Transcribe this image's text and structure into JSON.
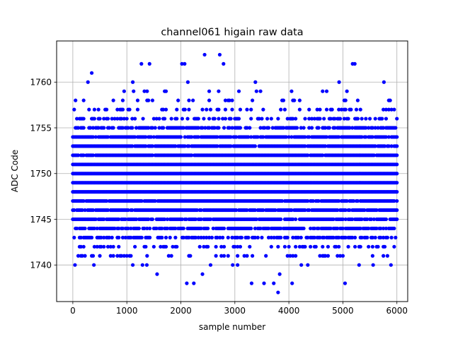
{
  "chart_data": {
    "type": "scatter",
    "title": "channel061 higain raw data",
    "xlabel": "sample number",
    "ylabel": "ADC Code",
    "xlim": [
      -300,
      6200
    ],
    "ylim": [
      1736,
      1764.5
    ],
    "xticks": [
      0,
      1000,
      2000,
      3000,
      4000,
      5000,
      6000
    ],
    "yticks": [
      1740,
      1745,
      1750,
      1755,
      1760
    ],
    "grid": true,
    "marker_color": "#0000ff",
    "n_samples": 6000,
    "sample_step": 25,
    "core_levels": [
      1742,
      1743,
      1744,
      1745,
      1746,
      1747,
      1748,
      1749,
      1750,
      1751,
      1752,
      1753,
      1754,
      1755,
      1756
    ],
    "core_level_fill": [
      0.28,
      0.55,
      0.75,
      0.85,
      0.9,
      0.95,
      1.0,
      1.0,
      1.0,
      1.0,
      0.95,
      0.92,
      0.88,
      0.72,
      0.4
    ],
    "edge_points": [
      {
        "x": 40,
        "y": 1740
      },
      {
        "x": 390,
        "y": 1740
      },
      {
        "x": 1110,
        "y": 1740
      },
      {
        "x": 1290,
        "y": 1740
      },
      {
        "x": 1370,
        "y": 1740
      },
      {
        "x": 1560,
        "y": 1739
      },
      {
        "x": 2110,
        "y": 1738
      },
      {
        "x": 2240,
        "y": 1738
      },
      {
        "x": 2400,
        "y": 1739
      },
      {
        "x": 2550,
        "y": 1740
      },
      {
        "x": 2960,
        "y": 1740
      },
      {
        "x": 3050,
        "y": 1740
      },
      {
        "x": 3310,
        "y": 1738
      },
      {
        "x": 3540,
        "y": 1738
      },
      {
        "x": 3720,
        "y": 1738
      },
      {
        "x": 3800,
        "y": 1737
      },
      {
        "x": 3830,
        "y": 1739
      },
      {
        "x": 4060,
        "y": 1738
      },
      {
        "x": 4230,
        "y": 1740
      },
      {
        "x": 4350,
        "y": 1740
      },
      {
        "x": 5040,
        "y": 1738
      },
      {
        "x": 5300,
        "y": 1740
      },
      {
        "x": 5560,
        "y": 1740
      },
      {
        "x": 5890,
        "y": 1740
      },
      {
        "x": 280,
        "y": 1760
      },
      {
        "x": 350,
        "y": 1761
      },
      {
        "x": 1110,
        "y": 1760
      },
      {
        "x": 1270,
        "y": 1762
      },
      {
        "x": 1420,
        "y": 1762
      },
      {
        "x": 2020,
        "y": 1762
      },
      {
        "x": 2070,
        "y": 1762
      },
      {
        "x": 2130,
        "y": 1760
      },
      {
        "x": 2440,
        "y": 1763
      },
      {
        "x": 2720,
        "y": 1763
      },
      {
        "x": 2790,
        "y": 1762
      },
      {
        "x": 3380,
        "y": 1760
      },
      {
        "x": 4930,
        "y": 1760
      },
      {
        "x": 5180,
        "y": 1762
      },
      {
        "x": 5220,
        "y": 1762
      },
      {
        "x": 5760,
        "y": 1760
      }
    ]
  }
}
